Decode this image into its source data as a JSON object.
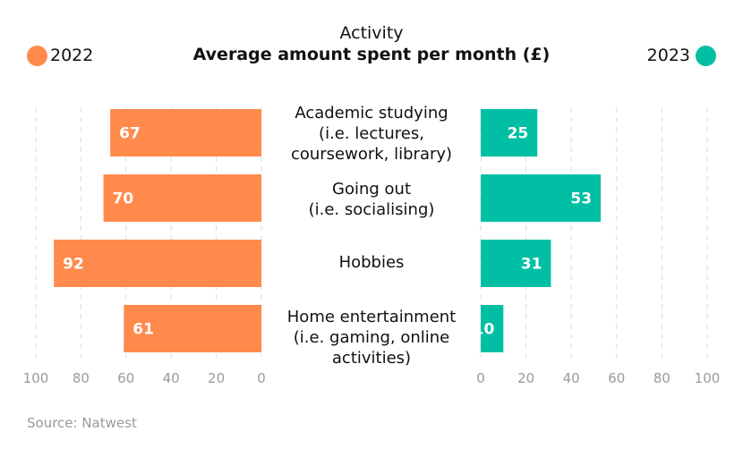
{
  "chart_data": {
    "type": "bar",
    "orientation": "horizontal-butterfly",
    "title_line1": "Activity",
    "title": "Average amount spent per month (£)",
    "categories": [
      "Academic studying\n(i.e. lectures,\ncoursework, library)",
      "Going out\n(i.e. socialising)",
      "Hobbies",
      "Home entertainment\n(i.e. gaming, online\nactivities)"
    ],
    "series": [
      {
        "name": "2022",
        "color": "#ff8a4c",
        "side": "left",
        "values": [
          67,
          70,
          92,
          61
        ]
      },
      {
        "name": "2023",
        "color": "#00bfa5",
        "side": "right",
        "values": [
          25,
          53,
          31,
          10
        ]
      }
    ],
    "xlim": [
      0,
      100
    ],
    "x_ticks": [
      0,
      20,
      40,
      60,
      80,
      100
    ],
    "grid": true,
    "legend_placement": "top-left and top-right",
    "source": "Source: Natwest"
  }
}
